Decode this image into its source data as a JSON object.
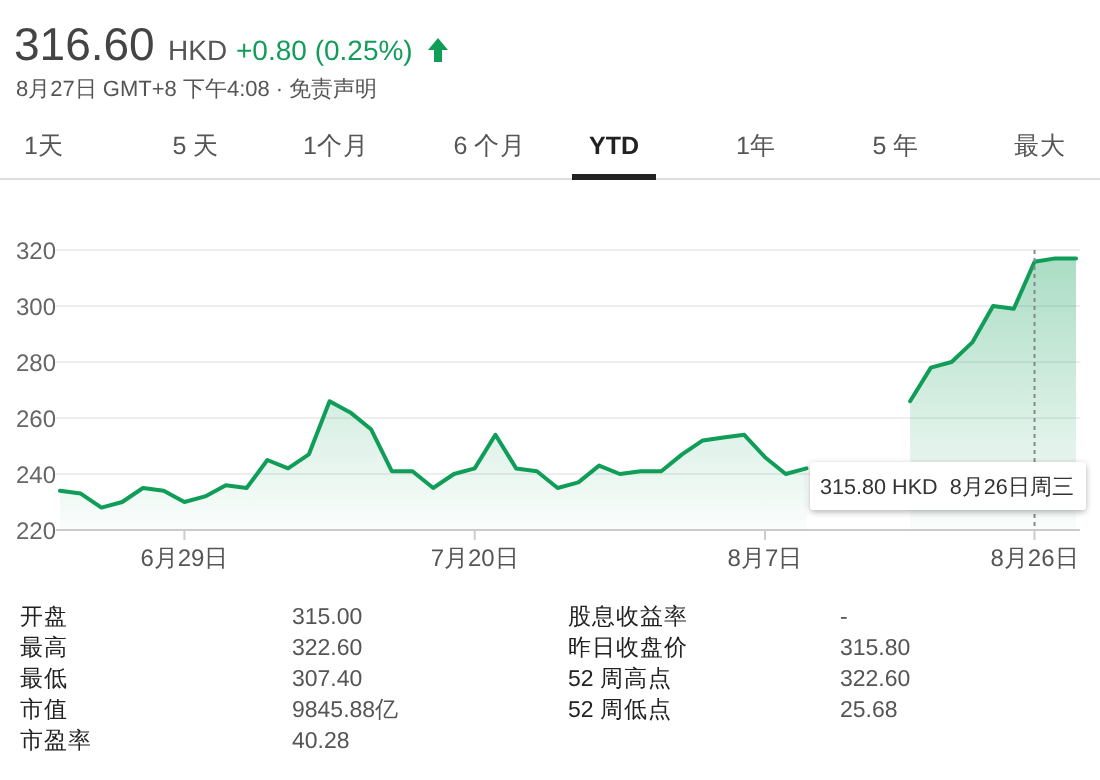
{
  "chart_data": {
    "type": "area",
    "title": "316.60",
    "subtitle": "8月27日 GMT+8 下午4:08 · 免责声明",
    "categories": [
      null,
      null,
      null,
      null,
      null,
      null,
      "6月29日",
      null,
      null,
      null,
      null,
      null,
      null,
      null,
      null,
      null,
      null,
      null,
      null,
      null,
      "7月20日",
      null,
      null,
      null,
      null,
      null,
      null,
      null,
      null,
      null,
      null,
      null,
      null,
      null,
      "8月7日",
      null,
      null,
      null,
      null,
      null,
      null,
      null,
      null,
      null,
      null,
      null,
      null,
      "8月26日",
      null,
      null
    ],
    "values": [
      234,
      233,
      228,
      230,
      235,
      234,
      230,
      232,
      236,
      235,
      245,
      242,
      247,
      266,
      262,
      256,
      241,
      241,
      235,
      240,
      242,
      254,
      242,
      241,
      235,
      237,
      243,
      240,
      241,
      241,
      247,
      252,
      253,
      254,
      246,
      240,
      242,
      null,
      null,
      null,
      null,
      266,
      278,
      280,
      287,
      300,
      299,
      315.8,
      317,
      317
    ],
    "color": "#0f9d58",
    "ref_lines": [
      {
        "axis": "x",
        "value": "8月26日",
        "line_style": "dotted",
        "color": "#888888"
      }
    ],
    "ylim": [
      220,
      320
    ],
    "yticks": [
      220,
      240,
      260,
      280,
      300,
      320
    ],
    "grid": "y",
    "annotations": [
      "HKD",
      "+0.80 (0.25%)",
      "1天",
      "5 天",
      "1个月",
      "6 个月",
      "YTD",
      "1年",
      "5 年",
      "最大",
      "315.80 HKD  8月26日周三",
      "开盘",
      "315.00",
      "最高",
      "322.60",
      "最低",
      "307.40",
      "市值",
      "9845.88亿",
      "市盈率",
      "40.28",
      "股息收益率",
      "-",
      "昨日收盘价",
      "315.80",
      "52 周高点",
      "322.60",
      "52 周低点",
      "25.68"
    ]
  }
}
